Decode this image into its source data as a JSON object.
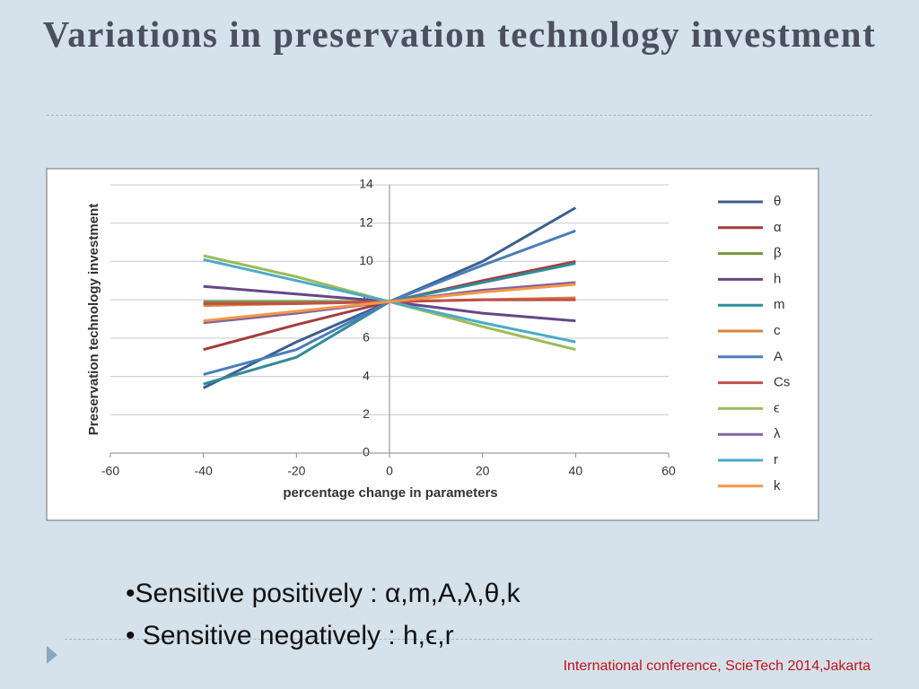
{
  "slide": {
    "title": "Variations in preservation technology investment",
    "bullets": [
      "•Sensitive positively : α,m,A,λ,θ,k",
      "• Sensitive negatively : h,ϵ,r"
    ],
    "footer": "International conference, ScieTech 2014,Jakarta"
  },
  "chart_data": {
    "type": "line",
    "x_label": "percentage change in parameters",
    "y_label": "Preservation technology investment",
    "x": [
      -40,
      -20,
      0,
      20,
      40
    ],
    "xlim": [
      -60,
      60
    ],
    "xticks": [
      -60,
      -40,
      -20,
      0,
      20,
      40,
      60
    ],
    "ylim": [
      0,
      14
    ],
    "yticks": [
      0,
      2,
      4,
      6,
      8,
      10,
      12,
      14
    ],
    "grid": true,
    "legend": "right",
    "series": [
      {
        "name": "θ",
        "color": "#3b5f8e",
        "values": [
          3.4,
          5.8,
          7.9,
          10.0,
          12.8
        ]
      },
      {
        "name": "α",
        "color": "#a23d3a",
        "values": [
          5.4,
          6.7,
          7.9,
          9.0,
          10.0
        ]
      },
      {
        "name": "β",
        "color": "#77963a",
        "values": [
          7.9,
          7.9,
          7.9,
          8.0,
          8.0
        ]
      },
      {
        "name": "h",
        "color": "#654786",
        "values": [
          8.7,
          8.3,
          7.9,
          7.3,
          6.9
        ]
      },
      {
        "name": "m",
        "color": "#2f8d97",
        "values": [
          3.6,
          5.0,
          7.9,
          8.9,
          9.9
        ]
      },
      {
        "name": "c",
        "color": "#d8823a",
        "values": [
          7.7,
          7.8,
          7.9,
          8.0,
          8.1
        ]
      },
      {
        "name": "A",
        "color": "#4a7ebb",
        "values": [
          4.1,
          5.4,
          7.9,
          9.8,
          11.6
        ]
      },
      {
        "name": "Cs",
        "color": "#c0504d",
        "values": [
          7.8,
          7.8,
          7.9,
          8.0,
          8.0
        ]
      },
      {
        "name": "ϵ",
        "color": "#9bbb59",
        "values": [
          10.3,
          9.2,
          7.9,
          6.6,
          5.4
        ]
      },
      {
        "name": "λ",
        "color": "#8064a2",
        "values": [
          6.8,
          7.3,
          7.9,
          8.5,
          8.9
        ]
      },
      {
        "name": "r",
        "color": "#4bacc6",
        "values": [
          10.1,
          9.0,
          7.9,
          6.8,
          5.8
        ]
      },
      {
        "name": "k",
        "color": "#f79646",
        "values": [
          6.9,
          7.4,
          7.9,
          8.4,
          8.8
        ]
      }
    ]
  }
}
